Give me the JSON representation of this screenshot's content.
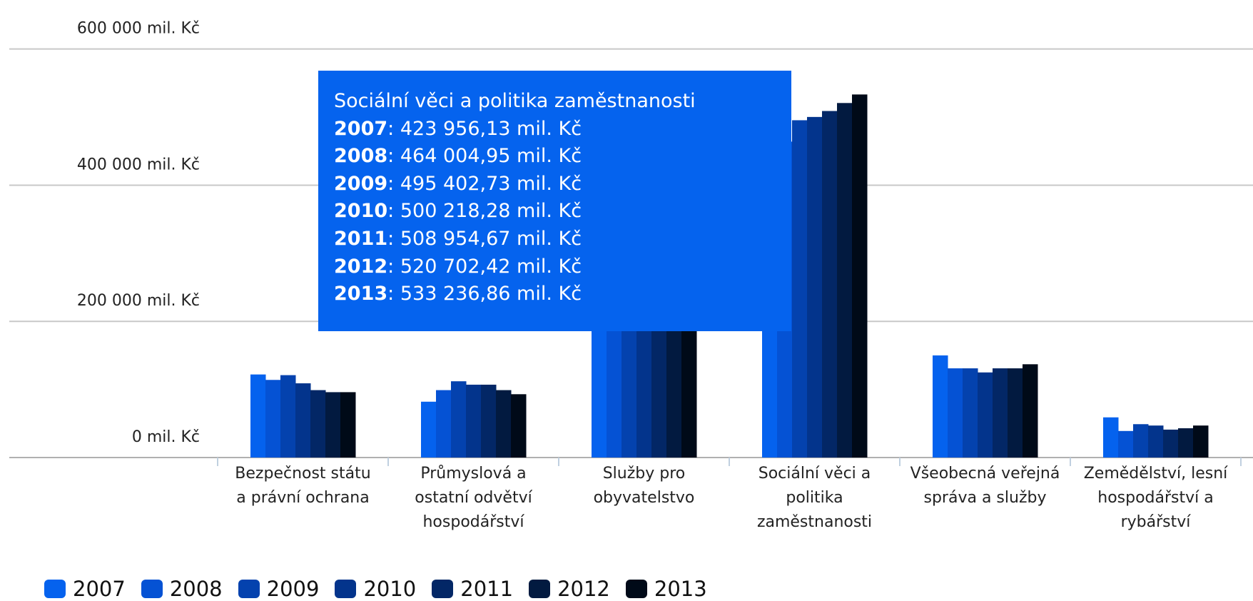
{
  "chart_data": {
    "type": "bar",
    "categories": [
      "Bezpečnost státu a právní ochrana",
      "Průmyslová a ostatní odvětví hospodářství",
      "Služby pro obyvatelstvo",
      "Sociální věci a politika zaměstnanosti",
      "Všeobecná veřejná správa a služby",
      "Zemědělství, lesní hospodářství a rybářství"
    ],
    "series": [
      {
        "name": "2007",
        "color": "#0562ee",
        "values": [
          122000,
          82000,
          290000,
          423956.13,
          150000,
          59000
        ]
      },
      {
        "name": "2008",
        "color": "#0552d4",
        "values": [
          114000,
          99000,
          300000,
          464004.95,
          131000,
          39000
        ]
      },
      {
        "name": "2009",
        "color": "#0442ae",
        "values": [
          121000,
          112000,
          305000,
          495402.73,
          131000,
          49000
        ]
      },
      {
        "name": "2010",
        "color": "#03348c",
        "values": [
          109000,
          107000,
          310000,
          500218.28,
          125000,
          47000
        ]
      },
      {
        "name": "2011",
        "color": "#032766",
        "values": [
          99000,
          107000,
          312000,
          508954.67,
          131000,
          41000
        ]
      },
      {
        "name": "2012",
        "color": "#021a40",
        "values": [
          96000,
          99000,
          315000,
          520702.42,
          131000,
          43000
        ]
      },
      {
        "name": "2013",
        "color": "#000a18",
        "values": [
          96000,
          93000,
          320000,
          533236.86,
          137000,
          47000
        ]
      }
    ],
    "ylim": [
      0,
      672000
    ],
    "yticks": [
      {
        "value": 0,
        "label": "0 mil. Kč"
      },
      {
        "value": 200000,
        "label": "200 000 mil. Kč"
      },
      {
        "value": 400000,
        "label": "400 000 mil. Kč"
      },
      {
        "value": 600000,
        "label": "600 000 mil. Kč"
      }
    ],
    "grid": true,
    "legend": "bottom-left",
    "tooltip": {
      "title": "Sociální věci a politika zaměstnanosti",
      "lines": [
        "423 956,13 mil. Kč",
        "464 004,95 mil. Kč",
        "495 402,73 mil. Kč",
        "500 218,28 mil. Kč",
        "508 954,67 mil. Kč",
        "520 702,42 mil. Kč",
        "533 236,86 mil. Kč"
      ]
    }
  }
}
